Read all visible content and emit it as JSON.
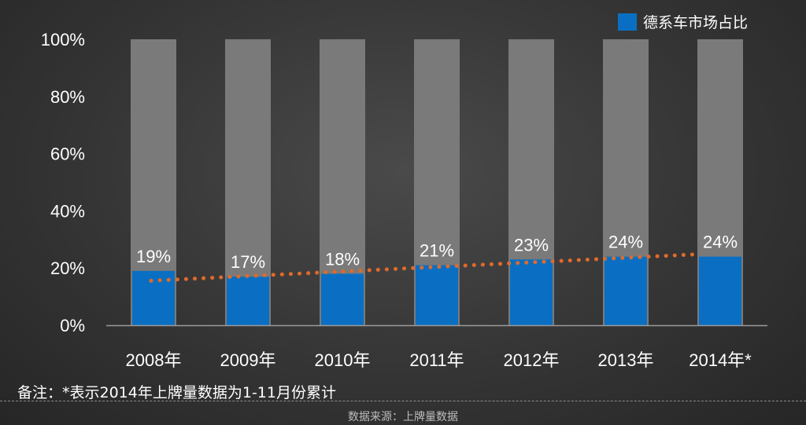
{
  "chart_data": {
    "type": "bar",
    "categories": [
      "2008年",
      "2009年",
      "2010年",
      "2011年",
      "2012年",
      "2013年",
      "2014年*"
    ],
    "series": [
      {
        "name": "德系车市场占比",
        "values": [
          19,
          17,
          18,
          21,
          23,
          24,
          24
        ],
        "color": "#0a6fc2"
      }
    ],
    "background_bar_value": 100,
    "background_bar_color": "#7a7a7a",
    "data_labels": [
      "19%",
      "17%",
      "18%",
      "21%",
      "23%",
      "24%",
      "24%"
    ],
    "y_ticks": [
      "0%",
      "20%",
      "40%",
      "60%",
      "80%",
      "100%"
    ],
    "ylim": [
      0,
      100
    ],
    "trendline": {
      "style": "dotted",
      "color": "#e06a2a"
    },
    "legend": {
      "position": "top-right",
      "label": "德系车市场占比"
    },
    "grid": false
  },
  "footnote": "备注：*表示2014年上牌量数据为1-11月份累计",
  "source": "数据来源：上牌量数据"
}
